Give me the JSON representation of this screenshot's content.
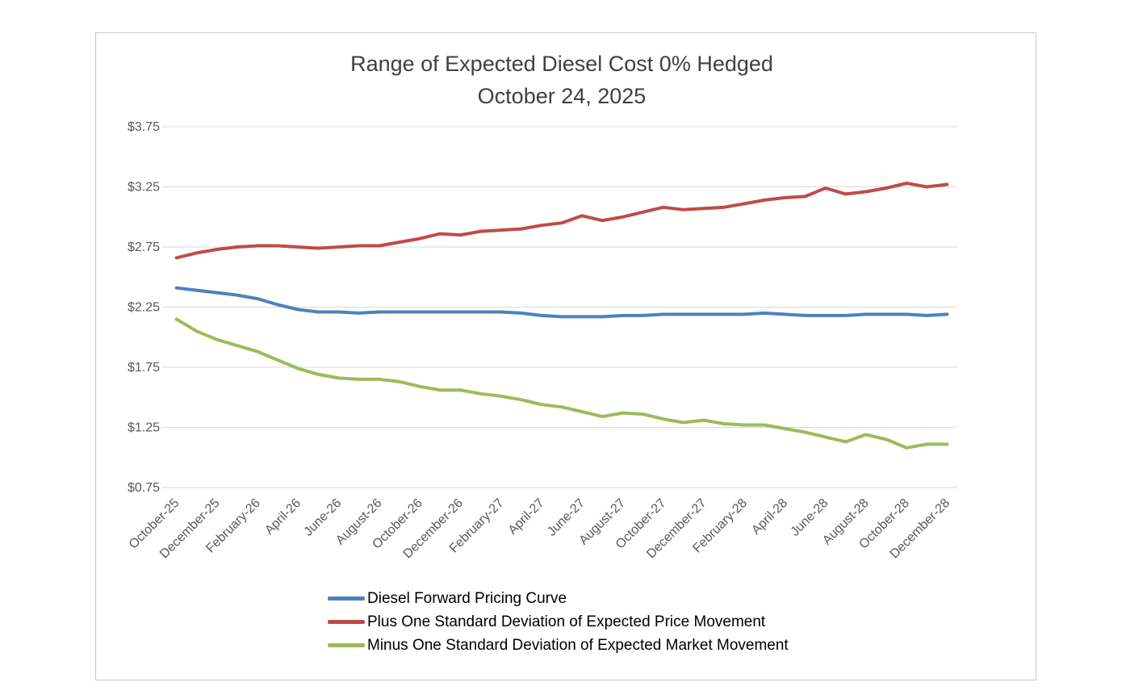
{
  "title": {
    "line1": "Range of Expected Diesel Cost 0% Hedged",
    "line2": "October 24, 2025"
  },
  "chart_data": {
    "type": "line",
    "title": "Range of Expected Diesel Cost 0% Hedged",
    "subtitle": "October 24, 2025",
    "xlabel": "",
    "ylabel": "",
    "ylim": [
      0.75,
      3.75
    ],
    "ytick_step": 0.5,
    "yticks": [
      "$0.75",
      "$1.25",
      "$1.75",
      "$2.25",
      "$2.75",
      "$3.25",
      "$3.75"
    ],
    "grid": true,
    "legend_position": "bottom",
    "x": [
      "October-25",
      "November-25",
      "December-25",
      "January-26",
      "February-26",
      "March-26",
      "April-26",
      "May-26",
      "June-26",
      "July-26",
      "August-26",
      "September-26",
      "October-26",
      "November-26",
      "December-26",
      "January-27",
      "February-27",
      "March-27",
      "April-27",
      "May-27",
      "June-27",
      "July-27",
      "August-27",
      "September-27",
      "October-27",
      "November-27",
      "December-27",
      "January-28",
      "February-28",
      "March-28",
      "April-28",
      "May-28",
      "June-28",
      "July-28",
      "August-28",
      "September-28",
      "October-28",
      "November-28",
      "December-28"
    ],
    "x_tick_labels": [
      "October-25",
      "December-25",
      "February-26",
      "April-26",
      "June-26",
      "August-26",
      "October-26",
      "December-26",
      "February-27",
      "April-27",
      "June-27",
      "August-27",
      "October-27",
      "December-27",
      "February-28",
      "April-28",
      "June-28",
      "August-28",
      "October-28",
      "December-28"
    ],
    "series": [
      {
        "name": "Diesel Forward Pricing Curve",
        "color": "#4E81BD",
        "values": [
          2.41,
          2.39,
          2.37,
          2.35,
          2.32,
          2.27,
          2.23,
          2.21,
          2.21,
          2.2,
          2.21,
          2.21,
          2.21,
          2.21,
          2.21,
          2.21,
          2.21,
          2.2,
          2.18,
          2.17,
          2.17,
          2.17,
          2.18,
          2.18,
          2.19,
          2.19,
          2.19,
          2.19,
          2.19,
          2.2,
          2.19,
          2.18,
          2.18,
          2.18,
          2.19,
          2.19,
          2.19,
          2.18,
          2.19
        ]
      },
      {
        "name": "Plus One Standard Deviation of Expected Price Movement",
        "color": "#BE4B48",
        "values": [
          2.66,
          2.7,
          2.73,
          2.75,
          2.76,
          2.76,
          2.75,
          2.74,
          2.75,
          2.76,
          2.76,
          2.79,
          2.82,
          2.86,
          2.85,
          2.88,
          2.89,
          2.9,
          2.93,
          2.95,
          3.01,
          2.97,
          3.0,
          3.04,
          3.08,
          3.06,
          3.07,
          3.08,
          3.11,
          3.14,
          3.16,
          3.17,
          3.24,
          3.19,
          3.21,
          3.24,
          3.28,
          3.25,
          3.27
        ]
      },
      {
        "name": "Minus One Standard Deviation of Expected Market Movement",
        "color": "#9CBB59",
        "values": [
          2.15,
          2.05,
          1.98,
          1.93,
          1.88,
          1.81,
          1.74,
          1.69,
          1.66,
          1.65,
          1.65,
          1.63,
          1.59,
          1.56,
          1.56,
          1.53,
          1.51,
          1.48,
          1.44,
          1.42,
          1.38,
          1.34,
          1.37,
          1.36,
          1.32,
          1.29,
          1.31,
          1.28,
          1.27,
          1.27,
          1.24,
          1.21,
          1.17,
          1.13,
          1.19,
          1.15,
          1.08,
          1.11,
          1.11
        ]
      }
    ]
  }
}
